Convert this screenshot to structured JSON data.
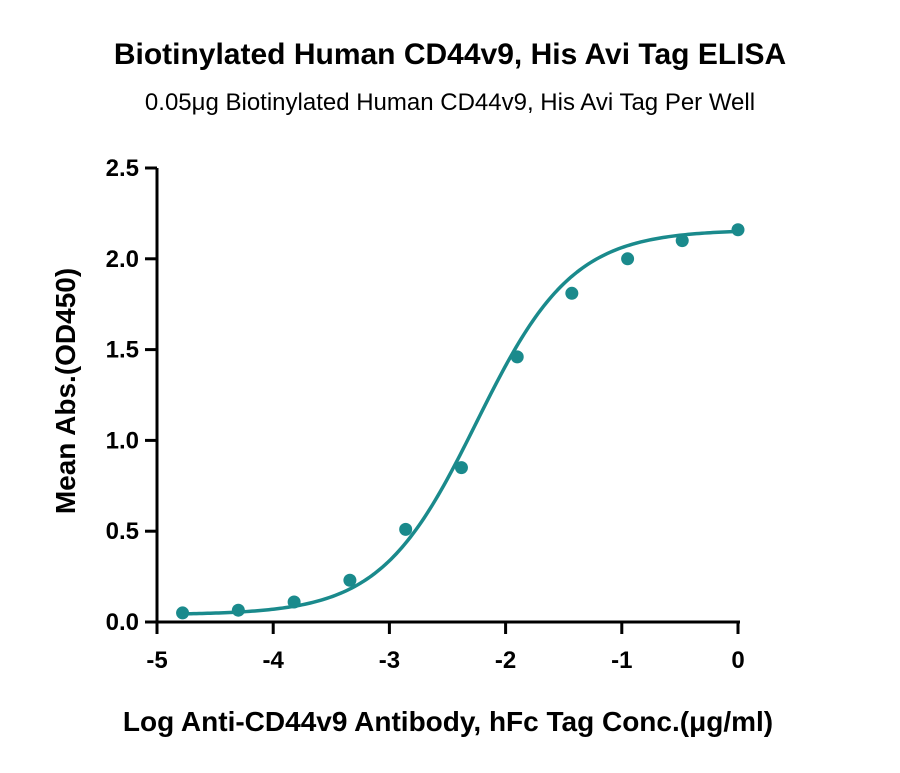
{
  "chart_data": {
    "type": "scatter",
    "title": "Biotinylated Human CD44v9, His Avi Tag ELISA",
    "subtitle": "0.05μg Biotinylated Human CD44v9, His Avi Tag Per Well",
    "xlabel": "Log Anti-CD44v9 Antibody, hFc Tag Conc.(μg/ml)",
    "ylabel": "Mean Abs.(OD450)",
    "xlim": [
      -5,
      0
    ],
    "ylim": [
      0,
      2.5
    ],
    "x_ticks": [
      -5,
      -4,
      -3,
      -2,
      -1,
      0
    ],
    "x_tick_labels": [
      "-5",
      "-4",
      "-3",
      "-2",
      "-1",
      "0"
    ],
    "y_ticks": [
      0,
      0.5,
      1.0,
      1.5,
      2.0,
      2.5
    ],
    "y_tick_labels": [
      "0.0",
      "0.5",
      "1.0",
      "1.5",
      "2.0",
      "2.5"
    ],
    "grid": false,
    "color": "#1a8a8c",
    "series": [
      {
        "points": [
          {
            "x": -4.78,
            "y": 0.05
          },
          {
            "x": -4.3,
            "y": 0.065
          },
          {
            "x": -3.82,
            "y": 0.11
          },
          {
            "x": -3.34,
            "y": 0.23
          },
          {
            "x": -2.86,
            "y": 0.51
          },
          {
            "x": -2.38,
            "y": 0.85
          },
          {
            "x": -1.9,
            "y": 1.46
          },
          {
            "x": -1.43,
            "y": 1.81
          },
          {
            "x": -0.95,
            "y": 2.0
          },
          {
            "x": -0.48,
            "y": 2.1
          },
          {
            "x": 0.0,
            "y": 2.16
          }
        ],
        "fit": {
          "bottom": 0.04,
          "top": 2.16,
          "logEC50": -2.25,
          "hill": 1.05
        }
      }
    ]
  }
}
